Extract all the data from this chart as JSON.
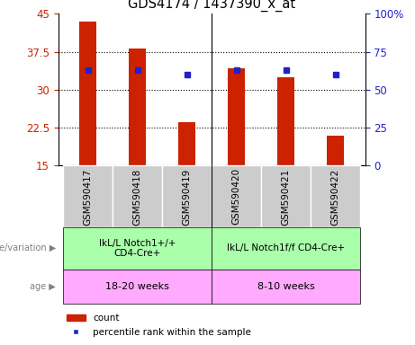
{
  "title": "GDS4174 / 1437390_x_at",
  "samples": [
    "GSM590417",
    "GSM590418",
    "GSM590419",
    "GSM590420",
    "GSM590421",
    "GSM590422"
  ],
  "counts": [
    43.5,
    38.2,
    23.5,
    34.2,
    32.5,
    21.0
  ],
  "percentiles": [
    63,
    63,
    60,
    63,
    63,
    60
  ],
  "ylim_left": [
    15,
    45
  ],
  "ylim_right": [
    0,
    100
  ],
  "yticks_left": [
    15,
    22.5,
    30,
    37.5,
    45
  ],
  "yticks_right": [
    0,
    25,
    50,
    75,
    100
  ],
  "ytick_labels_right": [
    "0",
    "25",
    "50",
    "75",
    "100%"
  ],
  "bar_color": "#cc2200",
  "marker_color": "#2222cc",
  "genotype1": "IkL/L Notch1+/+\nCD4-Cre+",
  "genotype2": "IkL/L Notch1f/f CD4-Cre+",
  "age1": "18-20 weeks",
  "age2": "8-10 weeks",
  "genotype_color": "#aaffaa",
  "age_color": "#ffaaff",
  "sample_bg_color": "#cccccc",
  "legend_count_label": "count",
  "legend_pct_label": "percentile rank within the sample",
  "background_color": "#ffffff",
  "grid_lines": [
    22.5,
    30,
    37.5
  ],
  "bar_width": 0.35,
  "n_group1": 3,
  "n_group2": 3
}
